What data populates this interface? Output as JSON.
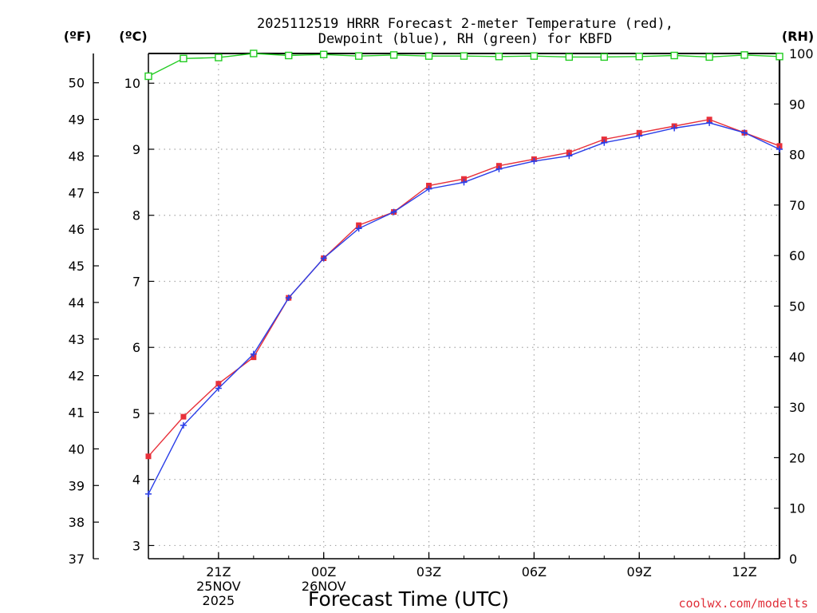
{
  "chart_data": {
    "type": "line",
    "title_lines": [
      "2025112519 HRRR Forecast 2-meter Temperature (red),",
      "Dewpoint (blue), RH (green) for KBFD"
    ],
    "xlabel": "Forecast Time (UTC)",
    "credit": "coolwx.com/modelts",
    "unit_labels": {
      "fahrenheit": "(ºF)",
      "celsius": "(ºC)",
      "rh": "(RH)"
    },
    "x_hours": [
      19,
      20,
      21,
      22,
      23,
      24,
      25,
      26,
      27,
      28,
      29,
      30,
      31,
      32,
      33,
      34,
      35,
      36,
      37
    ],
    "xlim": [
      19,
      37
    ],
    "x_ticks": [
      {
        "hour": 21,
        "lines": [
          "21Z",
          "25NOV",
          "2025"
        ]
      },
      {
        "hour": 24,
        "lines": [
          "00Z",
          "26NOV"
        ]
      },
      {
        "hour": 27,
        "lines": [
          "03Z"
        ]
      },
      {
        "hour": 30,
        "lines": [
          "06Z"
        ]
      },
      {
        "hour": 33,
        "lines": [
          "09Z"
        ]
      },
      {
        "hour": 36,
        "lines": [
          "12Z"
        ]
      }
    ],
    "celsius_axis": {
      "min": 2.8,
      "max": 10.45,
      "ticks": [
        "3",
        "4",
        "5",
        "6",
        "7",
        "8",
        "9",
        "10"
      ]
    },
    "fahrenheit_axis": {
      "min": 37,
      "max": 50.8,
      "ticks": [
        "37",
        "38",
        "39",
        "40",
        "41",
        "42",
        "43",
        "44",
        "45",
        "46",
        "47",
        "48",
        "49",
        "50"
      ]
    },
    "rh_axis": {
      "min": 0,
      "max": 100,
      "ticks": [
        "0",
        "10",
        "20",
        "30",
        "40",
        "50",
        "60",
        "70",
        "80",
        "90",
        "100"
      ]
    },
    "grid": true,
    "series": [
      {
        "name": "Temperature",
        "axis": "celsius",
        "color": "#e8303a",
        "marker": "square-filled",
        "values": [
          4.35,
          4.95,
          5.45,
          5.85,
          6.75,
          7.35,
          7.85,
          8.05,
          8.45,
          8.55,
          8.75,
          8.85,
          8.95,
          9.15,
          9.25,
          9.35,
          9.45,
          9.25,
          9.05
        ]
      },
      {
        "name": "Dewpoint",
        "axis": "celsius",
        "color": "#2a3ee8",
        "marker": "plus",
        "values": [
          3.78,
          4.82,
          5.38,
          5.9,
          6.75,
          7.35,
          7.8,
          8.05,
          8.4,
          8.5,
          8.7,
          8.82,
          8.9,
          9.1,
          9.2,
          9.32,
          9.4,
          9.25,
          9.0
        ]
      },
      {
        "name": "RH",
        "axis": "rh",
        "color": "#22cc22",
        "marker": "square-open",
        "values": [
          95.5,
          99,
          99.2,
          100,
          99.6,
          99.8,
          99.5,
          99.7,
          99.5,
          99.5,
          99.4,
          99.5,
          99.3,
          99.3,
          99.4,
          99.6,
          99.3,
          99.7,
          99.4
        ]
      }
    ]
  }
}
